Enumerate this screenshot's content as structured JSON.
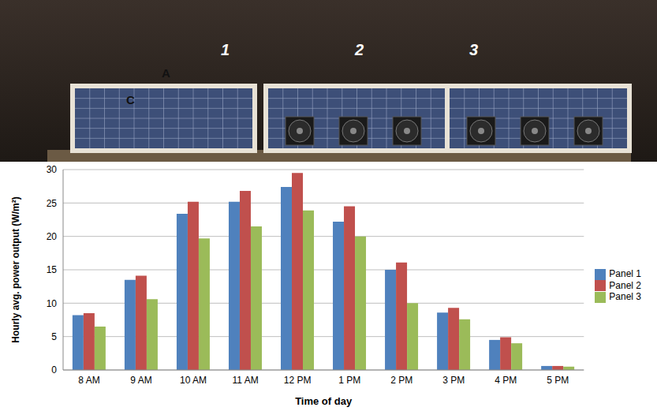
{
  "chart_data": {
    "type": "bar",
    "annotations": [
      "1",
      "2",
      "3",
      "A",
      "C"
    ],
    "x_label": "Time of day",
    "y_label": "Hourly avg. power output (W/m²)",
    "categories": [
      "8 AM",
      "9 AM",
      "10 AM",
      "11 AM",
      "12 PM",
      "1 PM",
      "2 PM",
      "3 PM",
      "4 PM",
      "5 PM"
    ],
    "series": [
      {
        "name": "Panel 1",
        "color": "#4f81bd",
        "values": [
          8.2,
          13.5,
          23.4,
          25.2,
          27.4,
          22.2,
          15.0,
          8.6,
          4.5,
          0.6
        ]
      },
      {
        "name": "Panel 2",
        "color": "#c0504d",
        "values": [
          8.5,
          14.1,
          25.2,
          26.8,
          29.5,
          24.5,
          16.1,
          9.3,
          4.9,
          0.6
        ]
      },
      {
        "name": "Panel 3",
        "color": "#9bbb59",
        "values": [
          6.5,
          10.6,
          19.7,
          21.5,
          23.9,
          20.0,
          10.0,
          7.6,
          4.0,
          0.5
        ]
      }
    ],
    "ylim": [
      0,
      30
    ],
    "yticks": [
      0,
      5,
      10,
      15,
      20,
      25,
      30
    ],
    "grid": true,
    "legend": "right"
  }
}
